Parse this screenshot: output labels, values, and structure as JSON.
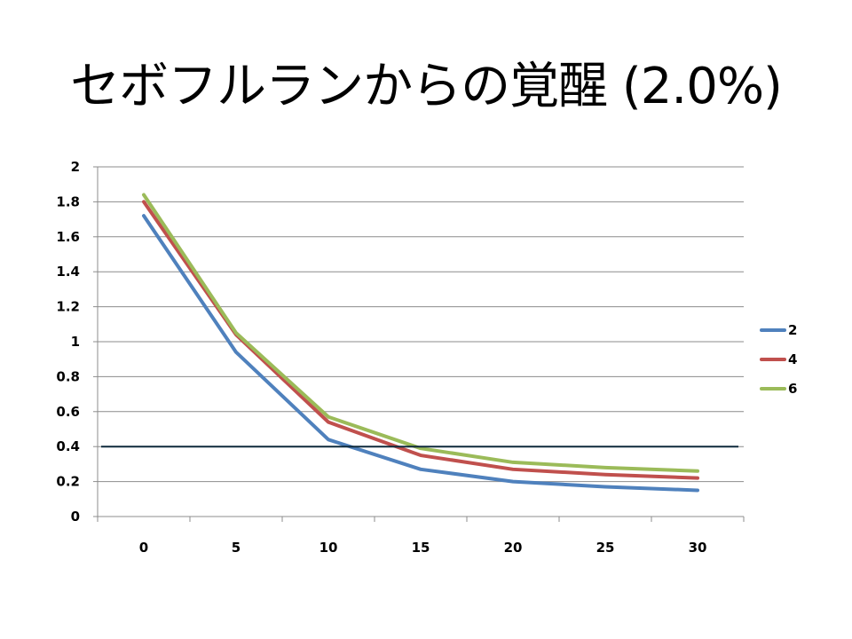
{
  "slide": {
    "title": "セボフルランからの覚醒 (2.0%)"
  },
  "chart_data": {
    "type": "line",
    "title": "",
    "xlabel": "",
    "ylabel": "",
    "categories": [
      "0",
      "5",
      "10",
      "15",
      "20",
      "25",
      "30"
    ],
    "ylim": [
      0,
      2
    ],
    "yticks": [
      "0",
      "0.2",
      "0.4",
      "0.6",
      "0.8",
      "1",
      "1.2",
      "1.4",
      "1.6",
      "1.8",
      "2"
    ],
    "grid": true,
    "legend_position": "right",
    "series": [
      {
        "name": "2",
        "color": "#4f81bd",
        "values": [
          1.72,
          0.94,
          0.44,
          0.27,
          0.2,
          0.17,
          0.15
        ]
      },
      {
        "name": "4",
        "color": "#c0504d",
        "values": [
          1.8,
          1.04,
          0.54,
          0.35,
          0.27,
          0.24,
          0.22
        ]
      },
      {
        "name": "6",
        "color": "#9bbb59",
        "values": [
          1.84,
          1.05,
          0.57,
          0.39,
          0.31,
          0.28,
          0.26
        ]
      }
    ],
    "reference_line": {
      "value": 0.4,
      "color": "#0f2a3c"
    }
  }
}
